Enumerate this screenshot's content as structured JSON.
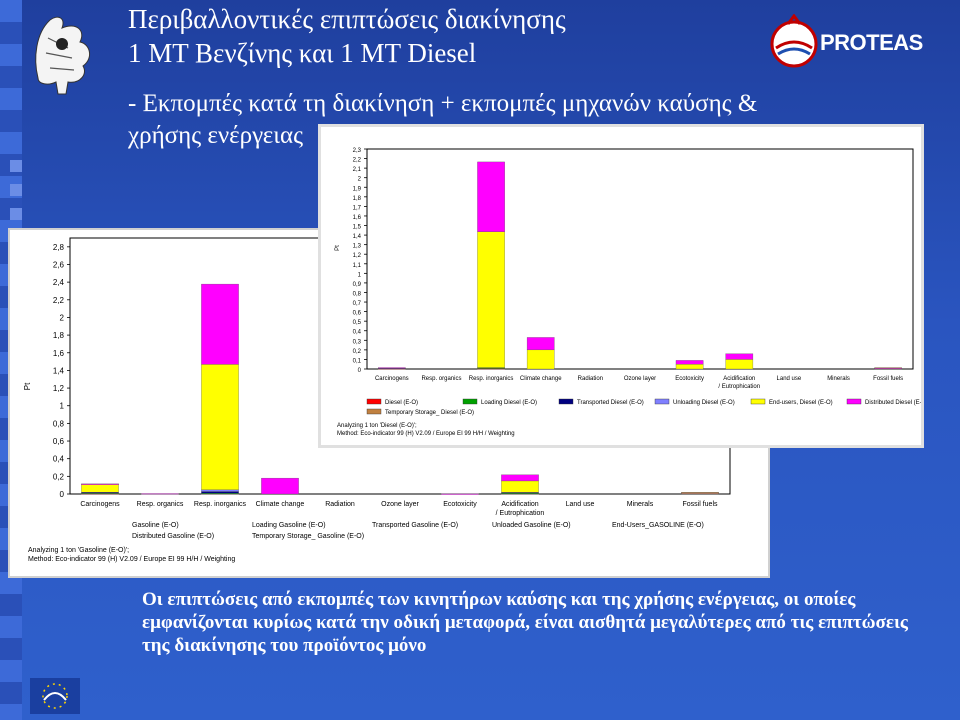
{
  "slide": {
    "title_line1": "Περιβαλλοντικές επιπτώσεις διακίνησης",
    "title_line2": "1 ΜΤ Βενζίνης και 1 ΜΤ Diesel",
    "subtitle": "- Εκπομπές κατά τη διακίνηση + εκπομπές μηχανών καύσης & χρήσης ενέργειας",
    "bottom_text": "Οι επιπτώσεις από εκπομπές των κινητήρων καύσης και της χρήσης ενέργειας, οι οποίες εμφανίζονται κυρίως κατά την οδική μεταφορά, είναι αισθητά μεγαλύτερες από τις επιπτώσεις της διακίνησης του προϊόντος μόνο",
    "logo_text": "PROTEAS",
    "colors": {
      "background": "#2a55c0",
      "text": "#ffffff"
    }
  },
  "chart_data": [
    {
      "type": "bar",
      "stacked": true,
      "ylabel": "Pt",
      "ylim": [
        0,
        2.9
      ],
      "yticks": [
        "0",
        "0,2",
        "0,4",
        "0,6",
        "0,8",
        "1",
        "1,2",
        "1,4",
        "1,6",
        "1,8",
        "2",
        "2,2",
        "2,4",
        "2,6",
        "2,8"
      ],
      "categories": [
        "Carcinogens",
        "Resp. organics",
        "Resp. inorganics",
        "Climate change",
        "Radiation",
        "Ozone layer",
        "Ecotoxicity",
        "Acidification / Eutrophication",
        "Land use",
        "Minerals",
        "Fossil fuels"
      ],
      "series": [
        {
          "name": "Gasoline (E-O)",
          "color": "#ff0000",
          "values": [
            0.005,
            0,
            0.005,
            0,
            0,
            0,
            0,
            0.005,
            0,
            0,
            0
          ]
        },
        {
          "name": "Loading Gasoline (E-O)",
          "color": "#00a000",
          "values": [
            0.005,
            0,
            0.003,
            0,
            0,
            0,
            0,
            0.003,
            0,
            0,
            0
          ]
        },
        {
          "name": "Transported Gasoline (E-O)",
          "color": "#000080",
          "values": [
            0.01,
            0,
            0.02,
            0,
            0,
            0,
            0,
            0.01,
            0,
            0,
            0
          ]
        },
        {
          "name": "Unloaded Gasoline (E-O)",
          "color": "#8080ff",
          "values": [
            0,
            0,
            0.02,
            0,
            0,
            0,
            0,
            0,
            0,
            0,
            0
          ]
        },
        {
          "name": "End-Users_GASOLINE (E-O)",
          "color": "#ffff00",
          "values": [
            0.09,
            0,
            1.42,
            0,
            0,
            0,
            0,
            0.13,
            0,
            0,
            0.01
          ]
        },
        {
          "name": "Distributed Gasoline (E-O)",
          "color": "#ff00ff",
          "values": [
            0.005,
            0.005,
            0.91,
            0.18,
            0,
            0,
            0.003,
            0.07,
            0,
            0,
            0.005
          ]
        },
        {
          "name": "Temporary Storage_ Gasoline (E-O)",
          "color": "#c08040",
          "values": [
            0,
            0,
            0,
            0,
            0,
            0,
            0,
            0,
            0,
            0,
            0.005
          ]
        }
      ],
      "legend_placement": "bottom",
      "footer_line1": "Analyzing 1 ton 'Gasoline (E-O)';",
      "footer_line2": "Method: Eco-indicator 99 (H) V2.09 / Europe EI 99 H/H / Weighting"
    },
    {
      "type": "bar",
      "stacked": true,
      "ylabel": "Pt",
      "ylim": [
        0,
        2.3
      ],
      "yticks": [
        "0",
        "0,1",
        "0,2",
        "0,3",
        "0,4",
        "0,5",
        "0,6",
        "0,7",
        "0,8",
        "0,9",
        "1",
        "1,1",
        "1,2",
        "1,3",
        "1,4",
        "1,5",
        "1,6",
        "1,7",
        "1,8",
        "1,9",
        "2",
        "2,1",
        "2,2",
        "2,3"
      ],
      "categories": [
        "Carcinogens",
        "Resp. organics",
        "Resp. inorganics",
        "Climate change",
        "Radiation",
        "Ozone layer",
        "Ecotoxicity",
        "Acidification / Eutrophication",
        "Land use",
        "Minerals",
        "Fossil fuels"
      ],
      "series": [
        {
          "name": "Diesel (E-O)",
          "color": "#ff0000",
          "values": [
            0.005,
            0,
            0.005,
            0,
            0,
            0,
            0,
            0,
            0,
            0,
            0
          ]
        },
        {
          "name": "Loading Diesel (E-O)",
          "color": "#00a000",
          "values": [
            0,
            0,
            0.01,
            0,
            0,
            0,
            0,
            0,
            0,
            0,
            0
          ]
        },
        {
          "name": "Transported Diesel (E-O)",
          "color": "#000080",
          "values": [
            0.005,
            0,
            0,
            0,
            0,
            0,
            0,
            0,
            0,
            0,
            0
          ]
        },
        {
          "name": "Unloading Diesel (E-O)",
          "color": "#8080ff",
          "values": [
            0,
            0,
            0,
            0,
            0,
            0,
            0,
            0,
            0,
            0,
            0
          ]
        },
        {
          "name": "End-users, Diesel (E-O)",
          "color": "#ffff00",
          "values": [
            0,
            0,
            1.42,
            0.2,
            0,
            0,
            0.05,
            0.1,
            0,
            0,
            0
          ]
        },
        {
          "name": "Distributed Diesel (E-O)",
          "color": "#ff00ff",
          "values": [
            0.005,
            0,
            0.73,
            0.13,
            0,
            0,
            0.04,
            0.06,
            0,
            0,
            0.01
          ]
        },
        {
          "name": "Temporary Storage_ Diesel (E-O)",
          "color": "#c08040",
          "values": [
            0,
            0,
            0,
            0,
            0,
            0,
            0,
            0,
            0,
            0,
            0.005
          ]
        }
      ],
      "legend_placement": "bottom",
      "footer_line1": "Analyzing 1 ton 'Diesel (E-O)';",
      "footer_line2": "Method: Eco-indicator 99 (H) V2.09 / Europe EI 99 H/H / Weighting"
    }
  ]
}
